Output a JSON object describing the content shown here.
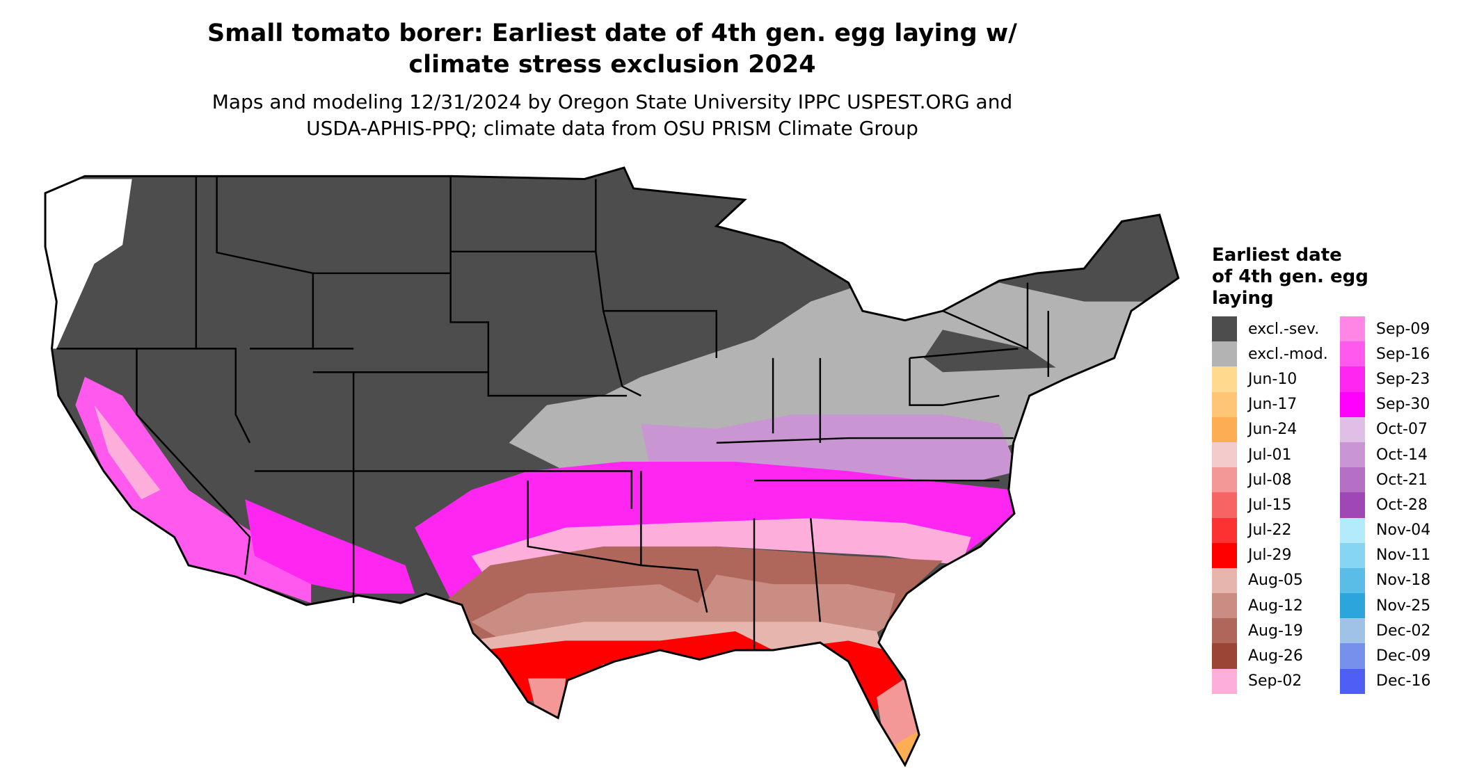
{
  "title": {
    "line1": "Small tomato borer: Earliest date of 4th gen. egg laying w/",
    "line2": "climate stress exclusion 2024"
  },
  "subtitle": {
    "line1": "Maps and modeling 12/31/2024 by Oregon State University IPPC USPEST.ORG and",
    "line2": "USDA-APHIS-PPQ; climate data from OSU PRISM Climate Group"
  },
  "legend": {
    "title_lines": [
      "Earliest date",
      "of 4th gen. egg",
      "laying"
    ],
    "col1": [
      {
        "label": "excl.-sev.",
        "color": "#4d4d4d"
      },
      {
        "label": "excl.-mod.",
        "color": "#b3b3b3"
      },
      {
        "label": "Jun-10",
        "color": "#fed98e"
      },
      {
        "label": "Jun-17",
        "color": "#fec576"
      },
      {
        "label": "Jun-24",
        "color": "#fdae55"
      },
      {
        "label": "Jul-01",
        "color": "#f4cbcb"
      },
      {
        "label": "Jul-08",
        "color": "#f49797"
      },
      {
        "label": "Jul-15",
        "color": "#f66464"
      },
      {
        "label": "Jul-22",
        "color": "#fc3131"
      },
      {
        "label": "Jul-29",
        "color": "#ff0000"
      },
      {
        "label": "Aug-05",
        "color": "#e6b5ae"
      },
      {
        "label": "Aug-12",
        "color": "#c98d83"
      },
      {
        "label": "Aug-19",
        "color": "#b0675b"
      },
      {
        "label": "Aug-26",
        "color": "#9b4535"
      },
      {
        "label": "Sep-02",
        "color": "#fdaedb"
      }
    ],
    "col2": [
      {
        "label": "Sep-09",
        "color": "#ff86e4"
      },
      {
        "label": "Sep-16",
        "color": "#ff59ee"
      },
      {
        "label": "Sep-23",
        "color": "#ff26f2"
      },
      {
        "label": "Sep-30",
        "color": "#ff00ff"
      },
      {
        "label": "Oct-07",
        "color": "#e0bfe6"
      },
      {
        "label": "Oct-14",
        "color": "#ca95d3"
      },
      {
        "label": "Oct-21",
        "color": "#b56fc5"
      },
      {
        "label": "Oct-28",
        "color": "#9e47b5"
      },
      {
        "label": "Nov-04",
        "color": "#b3ebfd"
      },
      {
        "label": "Nov-11",
        "color": "#86d6f3"
      },
      {
        "label": "Nov-18",
        "color": "#59bde8"
      },
      {
        "label": "Nov-25",
        "color": "#2ca5dc"
      },
      {
        "label": "Dec-02",
        "color": "#a0c2e6"
      },
      {
        "label": "Dec-09",
        "color": "#7790eb"
      },
      {
        "label": "Dec-16",
        "color": "#4f5ef5"
      }
    ]
  }
}
